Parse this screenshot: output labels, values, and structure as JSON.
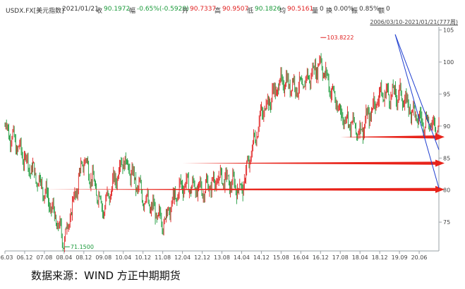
{
  "header": {
    "symbol": "USDX.FX[美元指数]",
    "date": "2021/01/21",
    "close_label": "收",
    "close_value": "90.1972",
    "change_label": "幅",
    "change_value": "-0.65%(-0.5928)",
    "open_label": "开",
    "open_value": "90.7337",
    "high_label": "高",
    "high_value": "90.9507",
    "low_label": "低",
    "low_value": "90.1826",
    "avg_label": "均",
    "avg_value": "90.5161",
    "volume_label": "量",
    "volume_value": "0",
    "turnover_label": "换",
    "turnover_value": "0.00%",
    "amplitude_label": "振",
    "amplitude_value": "0.85%",
    "amount_label": "额",
    "amount_value": "0"
  },
  "range_text": "2006/03/10-2021/01/21(777周)",
  "source_text": "数据来源：WIND 方正中期期货",
  "colors": {
    "up": "#e02020",
    "down": "#1a9a3a",
    "trendline": "#1f3fd0",
    "arrow": "#e8231a",
    "axis": "#9aa0a6"
  },
  "chart_data": {
    "type": "line",
    "series": [
      {
        "x": [
          "06.03",
          "06.12",
          "07.08",
          "08.04",
          "08.12",
          "09.08",
          "10.04",
          "10.12",
          "11.08",
          "12.04",
          "12.12",
          "13.08",
          "14.04",
          "14.12",
          "15.08",
          "16.04",
          "16.12",
          "17.08",
          "18.04",
          "18.12",
          "19.09",
          "20.06",
          "21.01"
        ],
        "y": [
          90,
          85,
          80,
          72,
          85,
          77,
          85,
          79,
          75,
          81,
          80,
          82,
          80,
          92,
          97,
          96,
          100,
          92,
          89,
          95,
          95,
          91,
          90
        ]
      }
    ],
    "x_tick_labels": [
      "06.03",
      "06.12",
      "07.08",
      "08.04",
      "08.12",
      "09.08",
      "10.04",
      "10.12",
      "11.08",
      "12.04",
      "12.12",
      "13.08",
      "14.04",
      "14.12",
      "15.08",
      "16.04",
      "16.12",
      "17.08",
      "18.04",
      "18.12",
      "19.09",
      "20.06"
    ],
    "y_ticks": [
      75,
      80,
      85,
      90,
      95,
      100,
      105
    ],
    "ylim": [
      70.5,
      105.5
    ],
    "annotations": [
      {
        "text": "103.8222",
        "x": "16.12",
        "y": 103.8222,
        "color": "red"
      },
      {
        "text": "71.1500",
        "x": "08.04",
        "y": 71.15,
        "color": "green"
      }
    ],
    "horizontal_arrows": [
      {
        "level": 88.3
      },
      {
        "level": 84.2
      },
      {
        "level": 80.1
      }
    ],
    "trendlines": [
      {
        "from": [
          "19.09",
          104.3
        ],
        "to": [
          "21.01",
          80.3
        ]
      },
      {
        "from": [
          "19.09",
          104.3
        ],
        "to": [
          "21.01",
          86.3
        ]
      }
    ]
  }
}
